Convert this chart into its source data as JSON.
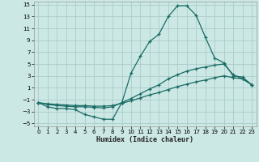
{
  "xlabel": "Humidex (Indice chaleur)",
  "xlim": [
    -0.5,
    23.5
  ],
  "ylim": [
    -5.5,
    15.5
  ],
  "yticks": [
    -5,
    -3,
    -1,
    1,
    3,
    5,
    7,
    9,
    11,
    13,
    15
  ],
  "xticks": [
    0,
    1,
    2,
    3,
    4,
    5,
    6,
    7,
    8,
    9,
    10,
    11,
    12,
    13,
    14,
    15,
    16,
    17,
    18,
    19,
    20,
    21,
    22,
    23
  ],
  "bg_color": "#cce8e4",
  "grid_color": "#aacccc",
  "line_color": "#1a6b65",
  "line1_x": [
    0,
    1,
    2,
    3,
    4,
    5,
    6,
    7,
    8,
    9,
    10,
    11,
    12,
    13,
    14,
    15,
    16,
    17,
    18,
    19,
    20,
    21,
    22,
    23
  ],
  "line1_y": [
    -1.5,
    -2.2,
    -2.5,
    -2.5,
    -2.7,
    -3.5,
    -3.9,
    -4.3,
    -4.3,
    -1.5,
    3.5,
    6.3,
    8.8,
    10.0,
    13.0,
    14.8,
    14.8,
    13.2,
    9.5,
    6.0,
    5.2,
    3.0,
    2.8,
    1.5
  ],
  "line2_x": [
    0,
    1,
    2,
    3,
    4,
    5,
    6,
    7,
    8,
    9,
    10,
    11,
    12,
    13,
    14,
    15,
    16,
    17,
    18,
    19,
    20,
    21,
    22,
    23
  ],
  "line2_y": [
    -1.5,
    -1.8,
    -2.0,
    -2.1,
    -2.2,
    -2.2,
    -2.3,
    -2.4,
    -2.2,
    -1.5,
    -0.8,
    0.0,
    0.8,
    1.5,
    2.5,
    3.2,
    3.8,
    4.2,
    4.5,
    4.8,
    5.0,
    3.2,
    2.5,
    1.5
  ],
  "line3_x": [
    0,
    1,
    2,
    3,
    4,
    5,
    6,
    7,
    8,
    9,
    10,
    11,
    12,
    13,
    14,
    15,
    16,
    17,
    18,
    19,
    20,
    21,
    22,
    23
  ],
  "line3_y": [
    -1.5,
    -1.7,
    -1.8,
    -1.9,
    -2.0,
    -2.0,
    -2.1,
    -2.1,
    -2.0,
    -1.6,
    -1.2,
    -0.7,
    -0.2,
    0.2,
    0.7,
    1.2,
    1.6,
    2.0,
    2.3,
    2.7,
    3.0,
    2.7,
    2.5,
    1.5
  ]
}
